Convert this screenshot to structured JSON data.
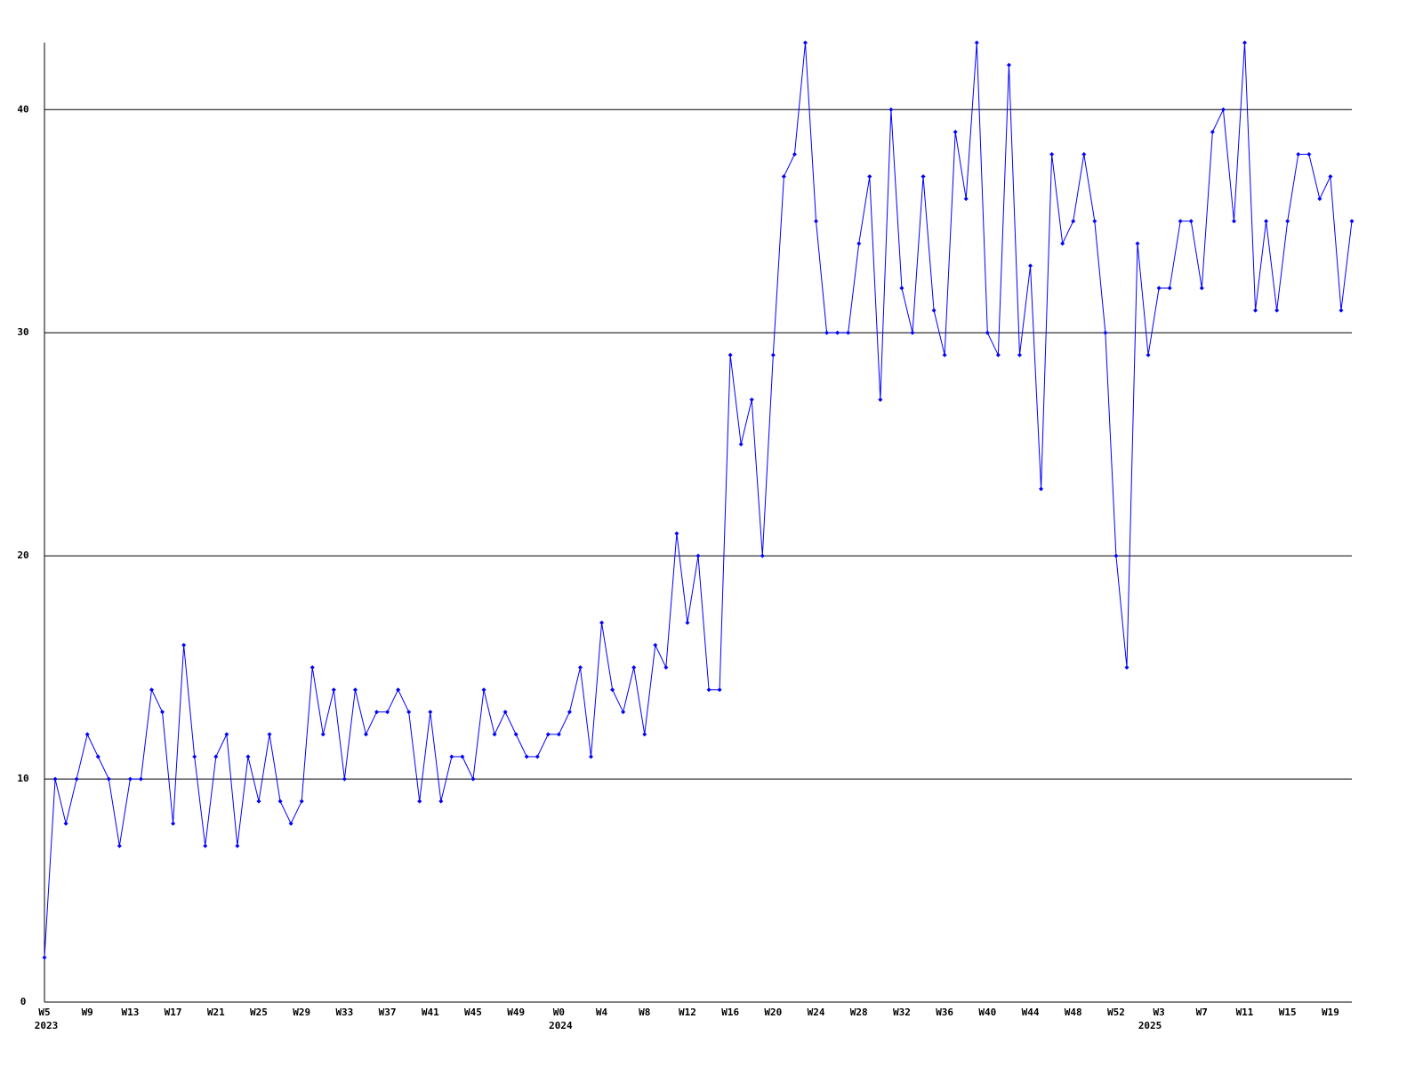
{
  "chart_data": {
    "type": "line",
    "categories": [
      "W5",
      null,
      null,
      null,
      "W9",
      null,
      null,
      null,
      "W13",
      null,
      null,
      null,
      "W17",
      null,
      null,
      null,
      "W21",
      null,
      null,
      null,
      "W25",
      null,
      null,
      null,
      "W29",
      null,
      null,
      null,
      "W33",
      null,
      null,
      null,
      "W37",
      null,
      null,
      null,
      "W41",
      null,
      null,
      null,
      "W45",
      null,
      null,
      null,
      "W49",
      null,
      null,
      null,
      "W0",
      null,
      null,
      null,
      "W4",
      null,
      null,
      null,
      "W8",
      null,
      null,
      null,
      "W12",
      null,
      null,
      null,
      "W16",
      null,
      null,
      null,
      "W20",
      null,
      null,
      null,
      "W24",
      null,
      null,
      null,
      "W28",
      null,
      null,
      null,
      "W32",
      null,
      null,
      null,
      "W36",
      null,
      null,
      null,
      "W40",
      null,
      null,
      null,
      "W44",
      null,
      null,
      null,
      "W48",
      null,
      null,
      null,
      "W52",
      null,
      null,
      null,
      "W3",
      null,
      null,
      null,
      "W7",
      null,
      null,
      null,
      "W11",
      null,
      null,
      null,
      "W15",
      null,
      null,
      null,
      "W19",
      null,
      null
    ],
    "years": [
      "2023",
      null,
      null,
      null,
      null,
      null,
      null,
      null,
      null,
      null,
      null,
      null,
      null,
      null,
      null,
      null,
      null,
      null,
      null,
      null,
      null,
      null,
      null,
      null,
      null,
      null,
      null,
      null,
      null,
      null,
      null,
      null,
      null,
      null,
      null,
      null,
      null,
      null,
      null,
      null,
      null,
      null,
      null,
      null,
      null,
      null,
      null,
      null,
      "2024",
      null,
      null,
      null,
      null,
      null,
      null,
      null,
      null,
      null,
      null,
      null,
      null,
      null,
      null,
      null,
      null,
      null,
      null,
      null,
      null,
      null,
      null,
      null,
      null,
      null,
      null,
      null,
      null,
      null,
      null,
      null,
      null,
      null,
      null,
      null,
      null,
      null,
      null,
      null,
      null,
      null,
      null,
      null,
      null,
      null,
      null,
      null,
      null,
      null,
      null,
      null,
      null,
      null,
      null,
      "2025",
      null,
      null,
      null,
      null,
      null,
      null,
      null,
      null,
      null,
      null,
      null,
      null,
      null,
      null,
      null,
      null,
      null,
      null,
      null,
      null,
      null
    ],
    "values": [
      2,
      10,
      8,
      10,
      12,
      11,
      10,
      7,
      10,
      10,
      14,
      13,
      8,
      16,
      11,
      7,
      11,
      12,
      7,
      11,
      9,
      12,
      9,
      8,
      9,
      15,
      12,
      14,
      10,
      14,
      12,
      13,
      13,
      14,
      13,
      9,
      13,
      9,
      11,
      11,
      10,
      14,
      12,
      13,
      12,
      11,
      11,
      12,
      12,
      13,
      15,
      11,
      17,
      14,
      13,
      15,
      12,
      16,
      15,
      21,
      17,
      20,
      14,
      14,
      29,
      25,
      27,
      20,
      29,
      37,
      38,
      43,
      35,
      30,
      30,
      30,
      34,
      37,
      27,
      40,
      32,
      30,
      37,
      31,
      29,
      39,
      36,
      43,
      30,
      29,
      42,
      29,
      33,
      23,
      38,
      34,
      35,
      38,
      35,
      30,
      20,
      15,
      34,
      29,
      32,
      32,
      35,
      35,
      32,
      39,
      40,
      35,
      43,
      31,
      35,
      31,
      35,
      38,
      38,
      36,
      37,
      31,
      35
    ],
    "color": "#0000ff",
    "ylim": [
      0,
      43
    ],
    "yticks": [
      0,
      10,
      20,
      30,
      40
    ],
    "grid": true
  }
}
